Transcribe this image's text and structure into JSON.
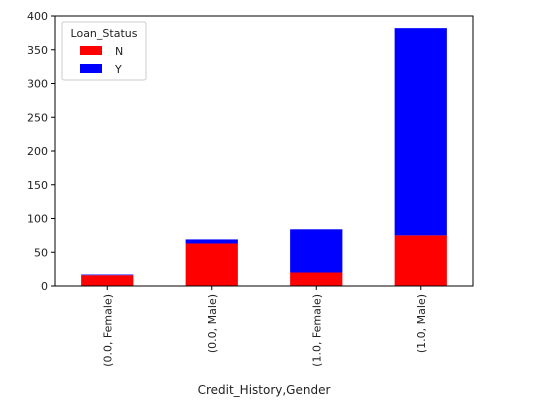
{
  "chart_data": {
    "type": "bar",
    "stacked": true,
    "title": "",
    "xlabel": "Credit_History,Gender",
    "ylabel": "",
    "categories": [
      "(0.0, Female)",
      "(0.0, Male)",
      "(1.0, Female)",
      "(1.0, Male)"
    ],
    "series": [
      {
        "name": "N",
        "color": "#ff0000",
        "values": [
          16,
          63,
          20,
          75
        ]
      },
      {
        "name": "Y",
        "color": "#0000ff",
        "values": [
          1,
          6,
          64,
          307
        ]
      }
    ],
    "ylim": [
      0,
      400
    ],
    "yticks": [
      0,
      50,
      100,
      150,
      200,
      250,
      300,
      350,
      400
    ],
    "grid": false,
    "legend": {
      "title": "Loan_Status",
      "position": "top-left"
    }
  }
}
